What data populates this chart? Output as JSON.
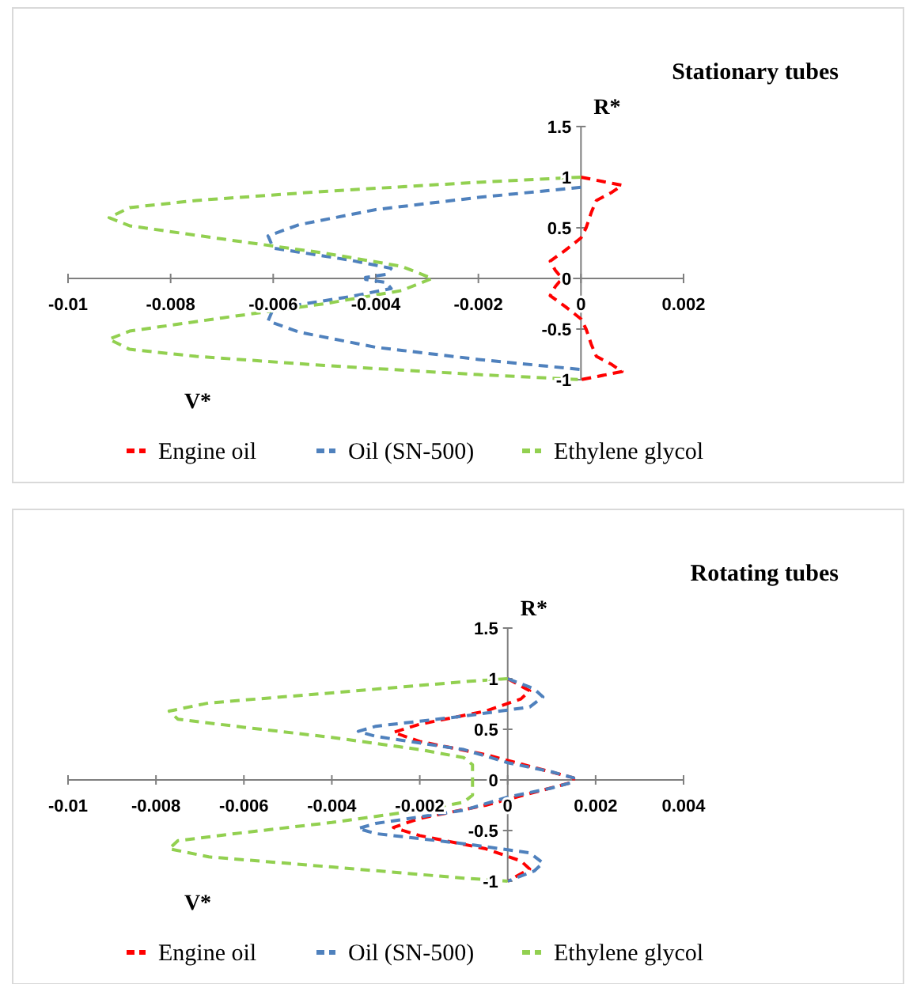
{
  "chart_data": [
    {
      "type": "line",
      "title": "Stationary tubes",
      "xlabel": "V*",
      "ylabel": "R*",
      "xlim": [
        -0.01,
        0.002
      ],
      "xticks": [
        -0.01,
        -0.008,
        -0.006,
        -0.004,
        -0.002,
        0,
        0.002
      ],
      "ylim": [
        -1,
        1.5
      ],
      "yticks": [
        -1,
        -0.5,
        0,
        0.5,
        1,
        1.5
      ],
      "grid": false,
      "legend": "bottom",
      "line_style": "dashed",
      "marker": "none",
      "series": [
        {
          "name": "Engine oil",
          "color": "#ff0000",
          "x": [
            0,
            0.0008,
            0.0006,
            0.0003,
            0.0002,
            0.0001,
            0,
            -0.0003,
            -0.0006,
            -0.0005,
            -0.0004,
            -0.0004,
            -0.0005,
            -0.0006,
            -0.0003,
            0,
            0.0001,
            0.0002,
            0.0003,
            0.0006,
            0.0008,
            0
          ],
          "values": [
            1,
            0.92,
            0.85,
            0.77,
            0.65,
            0.5,
            0.4,
            0.28,
            0.17,
            0.08,
            0.02,
            -0.02,
            -0.08,
            -0.17,
            -0.28,
            -0.4,
            -0.5,
            -0.65,
            -0.77,
            -0.85,
            -0.92,
            -1
          ]
        },
        {
          "name": "Oil (SN-500)",
          "color": "#4f81bd",
          "x": [
            0,
            -0.002,
            -0.004,
            -0.0055,
            -0.0061,
            -0.006,
            -0.0055,
            -0.0045,
            -0.0037,
            -0.0038,
            -0.0042,
            -0.0042,
            -0.0038,
            -0.0037,
            -0.0045,
            -0.0055,
            -0.006,
            -0.0061,
            -0.0055,
            -0.004,
            -0.002,
            0
          ],
          "values": [
            0.9,
            0.8,
            0.68,
            0.53,
            0.42,
            0.3,
            0.26,
            0.18,
            0.1,
            0.04,
            0.01,
            -0.01,
            -0.04,
            -0.1,
            -0.18,
            -0.26,
            -0.3,
            -0.42,
            -0.53,
            -0.68,
            -0.8,
            -0.9
          ]
        },
        {
          "name": "Ethylene glycol",
          "color": "#92d050",
          "x": [
            0,
            -0.002,
            -0.005,
            -0.0075,
            -0.0088,
            -0.0092,
            -0.0088,
            -0.007,
            -0.005,
            -0.0035,
            -0.0029,
            -0.0035,
            -0.005,
            -0.007,
            -0.0088,
            -0.0092,
            -0.0088,
            -0.0075,
            -0.005,
            -0.002,
            0
          ],
          "values": [
            1,
            0.95,
            0.86,
            0.77,
            0.7,
            0.6,
            0.52,
            0.39,
            0.25,
            0.12,
            0,
            -0.12,
            -0.25,
            -0.39,
            -0.52,
            -0.6,
            -0.7,
            -0.77,
            -0.86,
            -0.95,
            -1
          ]
        }
      ]
    },
    {
      "type": "line",
      "title": "Rotating tubes",
      "xlabel": "V*",
      "ylabel": "R*",
      "xlim": [
        -0.01,
        0.004
      ],
      "xticks": [
        -0.01,
        -0.008,
        -0.006,
        -0.004,
        -0.002,
        0,
        0.002,
        0.004
      ],
      "ylim": [
        -1,
        1.5
      ],
      "yticks": [
        -1,
        -0.5,
        0,
        0.5,
        1,
        1.5
      ],
      "grid": false,
      "legend": "bottom",
      "line_style": "dashed",
      "marker": "none",
      "series": [
        {
          "name": "Engine oil",
          "color": "#ff0000",
          "x": [
            0,
            0.0005,
            0.0003,
            -0.0005,
            -0.002,
            -0.0026,
            -0.002,
            -0.0005,
            0.0008,
            0.0015,
            0.0015,
            0.0008,
            -0.0005,
            -0.002,
            -0.0026,
            -0.002,
            -0.0005,
            0.0003,
            0.0005,
            0
          ],
          "values": [
            1,
            0.88,
            0.8,
            0.68,
            0.55,
            0.47,
            0.38,
            0.25,
            0.1,
            0.02,
            -0.02,
            -0.1,
            -0.25,
            -0.38,
            -0.47,
            -0.55,
            -0.68,
            -0.8,
            -0.88,
            -1
          ]
        },
        {
          "name": "Oil (SN-500)",
          "color": "#4f81bd",
          "x": [
            0,
            0.0006,
            0.0008,
            0.0005,
            -0.001,
            -0.003,
            -0.0034,
            -0.003,
            -0.001,
            0,
            0.001,
            0.0015,
            0.0015,
            0.001,
            0,
            -0.001,
            -0.003,
            -0.0034,
            -0.003,
            -0.001,
            0.0005,
            0.0008,
            0.0006,
            0
          ],
          "values": [
            1,
            0.9,
            0.82,
            0.72,
            0.63,
            0.53,
            0.48,
            0.43,
            0.3,
            0.17,
            0.08,
            0.02,
            -0.02,
            -0.08,
            -0.17,
            -0.3,
            -0.43,
            -0.48,
            -0.53,
            -0.63,
            -0.72,
            -0.82,
            -0.9,
            -1
          ]
        },
        {
          "name": "Ethylene glycol",
          "color": "#92d050",
          "x": [
            0,
            -0.001,
            -0.004,
            -0.0068,
            -0.0077,
            -0.0075,
            -0.006,
            -0.004,
            -0.002,
            -0.001,
            -0.0008,
            -0.0008,
            -0.0008,
            -0.001,
            -0.002,
            -0.004,
            -0.006,
            -0.0075,
            -0.0077,
            -0.0068,
            -0.004,
            -0.001,
            0
          ],
          "values": [
            1,
            0.97,
            0.86,
            0.76,
            0.68,
            0.6,
            0.52,
            0.42,
            0.3,
            0.22,
            0.15,
            0,
            -0.15,
            -0.22,
            -0.3,
            -0.42,
            -0.52,
            -0.6,
            -0.68,
            -0.76,
            -0.86,
            -0.97,
            -1
          ]
        }
      ]
    }
  ]
}
